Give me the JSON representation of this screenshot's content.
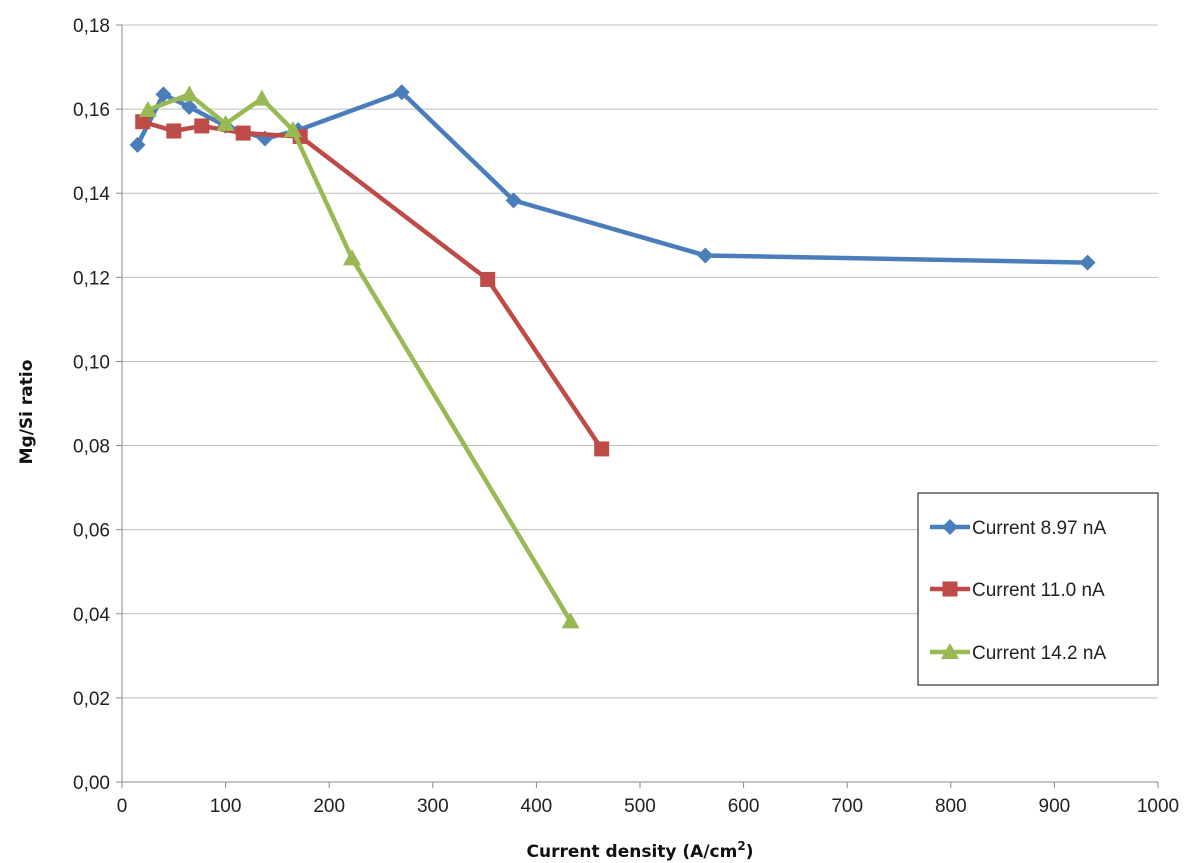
{
  "chart_data": {
    "type": "line",
    "title": "",
    "xlabel": "Current density (A/cm",
    "xlabel_sup": "2",
    "xlabel_end": ")",
    "ylabel": "Mg/Si ratio",
    "xlim": [
      0,
      1000
    ],
    "ylim": [
      0,
      0.18
    ],
    "x_ticks": [
      0,
      100,
      200,
      300,
      400,
      500,
      600,
      700,
      800,
      900,
      1000
    ],
    "x_tick_labels": [
      "0",
      "100",
      "200",
      "300",
      "400",
      "500",
      "600",
      "700",
      "800",
      "900",
      "1000"
    ],
    "y_ticks": [
      0,
      0.02,
      0.04,
      0.06,
      0.08,
      0.1,
      0.12,
      0.14,
      0.16,
      0.18
    ],
    "y_tick_labels": [
      "0,00",
      "0,02",
      "0,04",
      "0,06",
      "0,08",
      "0,10",
      "0,12",
      "0,14",
      "0,16",
      "0,18"
    ],
    "grid": "horizontal",
    "legend_position": "right",
    "series": [
      {
        "name": "Current 8.97 nA",
        "color": "#4a7ebb",
        "marker": "diamond",
        "x": [
          15,
          40,
          65,
          100,
          138,
          170,
          270,
          378,
          563,
          932
        ],
        "y": [
          0.1515,
          0.1635,
          0.1605,
          0.156,
          0.153,
          0.155,
          0.164,
          0.1383,
          0.1252,
          0.1235
        ]
      },
      {
        "name": "Current 11.0 nA",
        "color": "#be4b48",
        "marker": "square",
        "x": [
          20,
          50,
          77,
          117,
          172,
          353,
          463
        ],
        "y": [
          0.157,
          0.1548,
          0.156,
          0.1543,
          0.1535,
          0.1195,
          0.0792
        ]
      },
      {
        "name": "Current 14.2 nA",
        "color": "#98b954",
        "marker": "triangle",
        "x": [
          25,
          65,
          100,
          135,
          165,
          222,
          433
        ],
        "y": [
          0.1598,
          0.1635,
          0.1565,
          0.1625,
          0.155,
          0.1245,
          0.0382
        ]
      }
    ]
  }
}
